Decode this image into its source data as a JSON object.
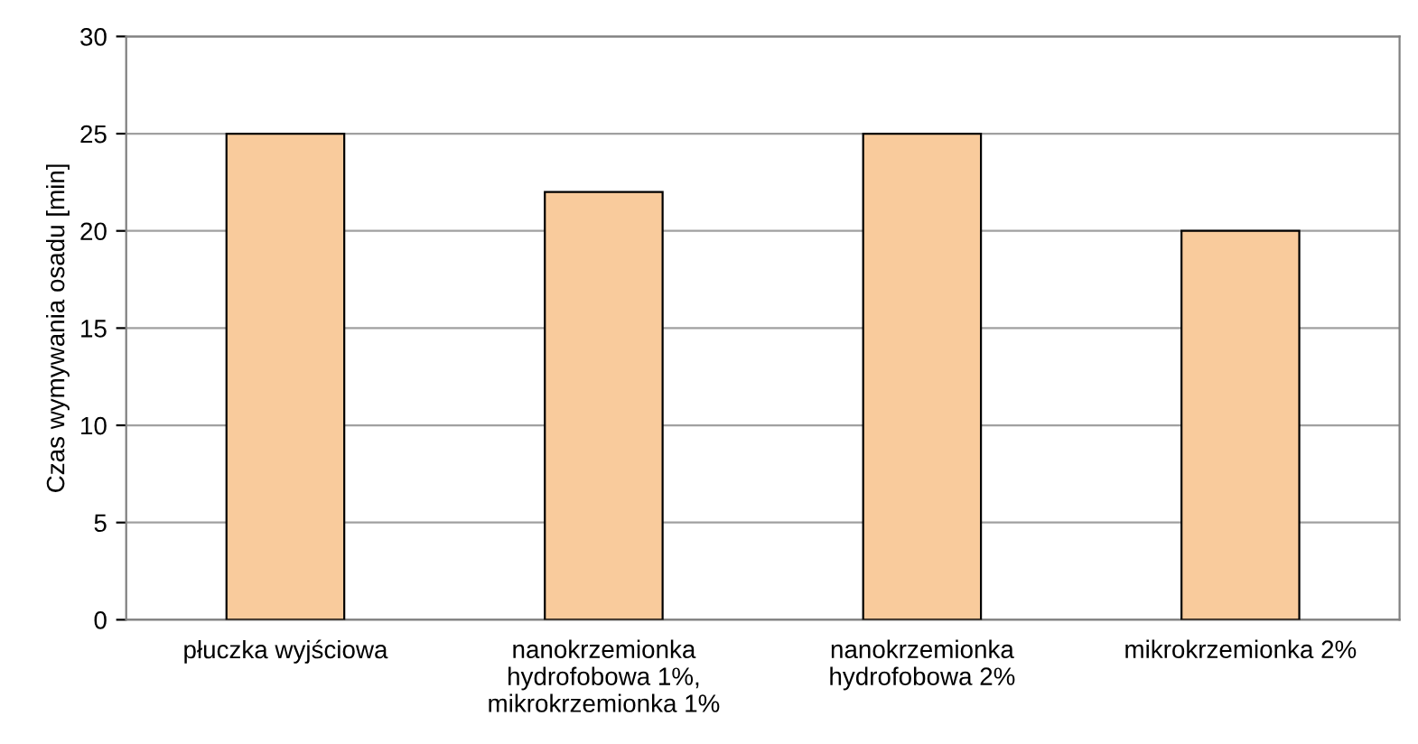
{
  "chart_data": {
    "type": "bar",
    "ylabel": "Czas wymywania osadu [min]",
    "categories": [
      "płuczka wyjściowa",
      "nanokrzemionka\nhydrofobowa 1%,\nmikrokrzemionka 1%",
      "nanokrzemionka\nhydrofobowa 2%",
      "mikrokrzemionka 2%"
    ],
    "values": [
      25,
      22,
      25,
      20
    ],
    "color": "#f9cb9c",
    "ylim": [
      0,
      30
    ],
    "yticks": [
      0,
      5,
      10,
      15,
      20,
      25,
      30
    ],
    "grid": "y"
  }
}
